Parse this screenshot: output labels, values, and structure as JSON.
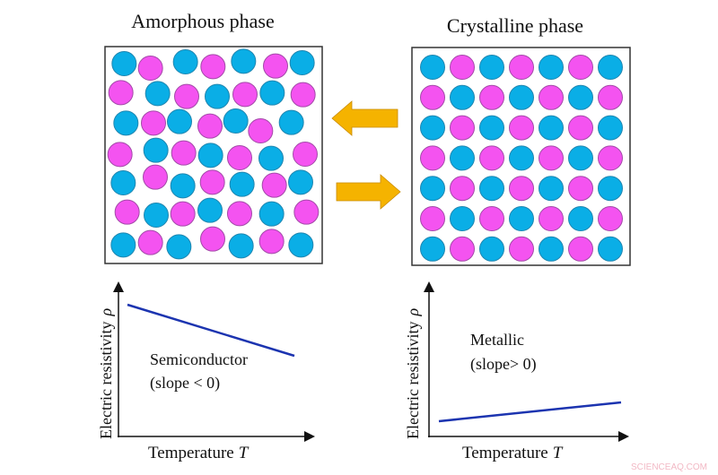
{
  "panels": {
    "amorphous": {
      "title": "Amorphous phase"
    },
    "crystalline": {
      "title": "Crystalline phase"
    }
  },
  "colors": {
    "atom_a": "#0aaee6",
    "atom_a_edge": "#1f86b0",
    "atom_b": "#f453f0",
    "atom_b_edge": "#a34aa8",
    "arrow": "#f5b300",
    "arrow_edge": "#c98a00",
    "curve": "#1c34b0",
    "axis": "#111111"
  },
  "graphs": {
    "semiconductor": {
      "ylabel": "Electric resistivity",
      "ysymbol": "ρ",
      "xlabel": "Temperature",
      "xsymbol": "T",
      "line1": "Semiconductor",
      "line2": "(slope < 0)",
      "trend": "decreasing"
    },
    "metallic": {
      "ylabel": "Electric resistivity",
      "ysymbol": "ρ",
      "xlabel": "Temperature",
      "xsymbol": "T",
      "line1": "Metallic",
      "line2": "(slope> 0)",
      "trend": "increasing"
    }
  },
  "arrows": [
    {
      "direction": "left"
    },
    {
      "direction": "right"
    }
  ],
  "watermark": "SCIENCEAQ.COM"
}
